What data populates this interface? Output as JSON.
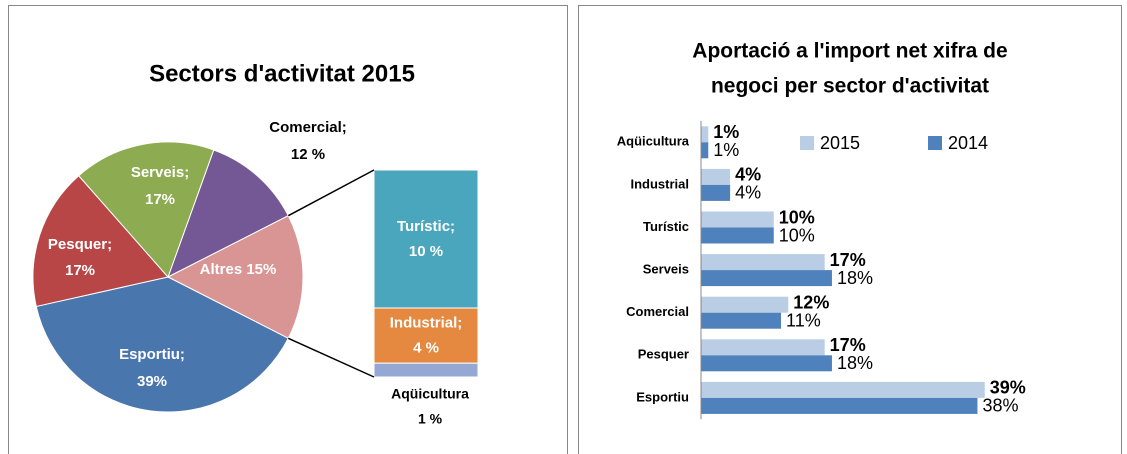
{
  "chart_data": [
    {
      "type": "pie-of-bar",
      "title": "Sectors d'activitat 2015",
      "values": [
        12,
        15,
        39,
        17,
        17
      ],
      "value_labels": [
        [
          "Comercial;",
          "12 %"
        ],
        [
          "Altres 15%"
        ],
        [
          "Esportiu;",
          "39%"
        ],
        [
          "Pesquer;",
          "17%"
        ],
        [
          "Serveis;",
          "17%"
        ]
      ],
      "colors": [
        "#735895",
        "#d99593",
        "#4a76ae",
        "#b84646",
        "#8dab50"
      ],
      "sub_values": [
        10,
        4,
        1
      ],
      "sub_value_labels": [
        [
          "Turístic;",
          "10 %"
        ],
        [
          "Industrial;",
          "4 %"
        ],
        [
          "Aqüicultura",
          "1 %"
        ]
      ],
      "sub_colors": [
        "#4aa6bd",
        "#e4893f",
        "#95a8d4"
      ]
    },
    {
      "type": "hbar",
      "title": [
        "Aportació a l'import net xifra de",
        "negoci per sector d'activitat"
      ],
      "categories": [
        "Aqüicultura",
        "Industrial",
        "Turístic",
        "Serveis",
        "Comercial",
        "Pesquer",
        "Esportiu"
      ],
      "series": [
        {
          "name": "2015",
          "color": "#b9cde5",
          "values": [
            1,
            4,
            10,
            17,
            12,
            17,
            39
          ],
          "value_labels": [
            "1%",
            "4%",
            "10%",
            "17%",
            "12%",
            "17%",
            "39%"
          ]
        },
        {
          "name": "2014",
          "color": "#4f81bd",
          "values": [
            1,
            4,
            10,
            18,
            11,
            18,
            38
          ],
          "value_labels": [
            "1%",
            "4%",
            "10%",
            "18%",
            "11%",
            "18%",
            "38%"
          ]
        }
      ],
      "xlim": [
        0,
        40
      ]
    }
  ]
}
